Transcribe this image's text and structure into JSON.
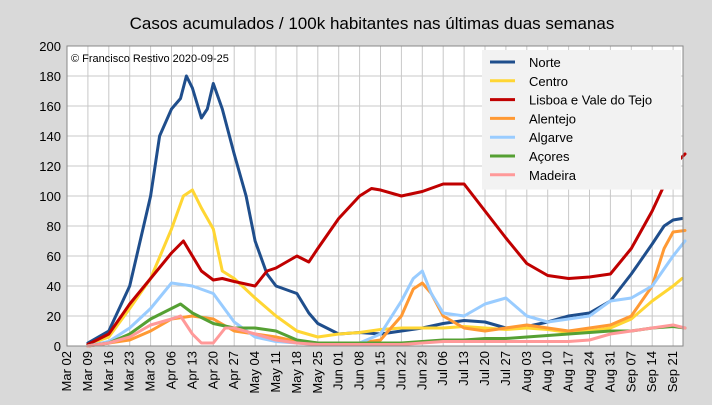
{
  "chart_data": {
    "type": "line",
    "title": "Casos acumulados / 100k habitantes nas últimas duas semanas",
    "annotation": "© Francisco Restivo 2020-09-25",
    "xlabel": "",
    "ylabel": "",
    "ylim": [
      0,
      200
    ],
    "yticks": [
      "0",
      "20",
      "40",
      "60",
      "80",
      "100",
      "120",
      "140",
      "160",
      "180",
      "200"
    ],
    "x_ticks": [
      "Mar 02",
      "Mar 09",
      "Mar 16",
      "Mar 23",
      "Mar 30",
      "Apr 06",
      "Apr 13",
      "Apr 20",
      "Apr 27",
      "May 04",
      "May 11",
      "May 18",
      "May 25",
      "Jun 01",
      "Jun 08",
      "Jun 15",
      "Jun 22",
      "Jun 29",
      "Jul 06",
      "Jul 13",
      "Jul 20",
      "Jul 27",
      "Aug 03",
      "Aug 10",
      "Aug 17",
      "Aug 24",
      "Aug 31",
      "Sep 07",
      "Sep 14",
      "Sep 21"
    ],
    "grid": true,
    "legend_position": "top-right",
    "series": [
      {
        "name": "Norte",
        "color": "#1f4e8c",
        "x": [
          "Mar 09",
          "Mar 16",
          "Mar 23",
          "Mar 30",
          "Apr 02",
          "Apr 06",
          "Apr 09",
          "Apr 11",
          "Apr 13",
          "Apr 16",
          "Apr 18",
          "Apr 20",
          "Apr 23",
          "Apr 27",
          "May 01",
          "May 04",
          "May 08",
          "May 11",
          "May 18",
          "May 22",
          "May 25",
          "Jun 01",
          "Jun 08",
          "Jun 15",
          "Jun 22",
          "Jun 29",
          "Jul 06",
          "Jul 13",
          "Jul 20",
          "Jul 27",
          "Aug 03",
          "Aug 10",
          "Aug 17",
          "Aug 24",
          "Aug 31",
          "Sep 07",
          "Sep 14",
          "Sep 18",
          "Sep 21",
          "Sep 24"
        ],
        "y": [
          2,
          10,
          40,
          100,
          140,
          158,
          165,
          180,
          172,
          152,
          158,
          175,
          158,
          128,
          100,
          70,
          48,
          40,
          35,
          22,
          15,
          8,
          9,
          8,
          10,
          12,
          15,
          17,
          16,
          12,
          13,
          16,
          20,
          22,
          30,
          48,
          68,
          80,
          84,
          85
        ]
      },
      {
        "name": "Centro",
        "color": "#ffd633",
        "x": [
          "Mar 09",
          "Mar 16",
          "Mar 23",
          "Mar 30",
          "Apr 06",
          "Apr 10",
          "Apr 13",
          "Apr 16",
          "Apr 20",
          "Apr 23",
          "Apr 27",
          "May 04",
          "May 11",
          "May 18",
          "May 25",
          "Jun 01",
          "Jun 08",
          "Jun 15",
          "Jun 22",
          "Jun 29",
          "Jul 06",
          "Jul 13",
          "Jul 20",
          "Jul 27",
          "Aug 03",
          "Aug 10",
          "Aug 17",
          "Aug 24",
          "Aug 31",
          "Sep 07",
          "Sep 14",
          "Sep 21",
          "Sep 24"
        ],
        "y": [
          1,
          6,
          25,
          45,
          78,
          100,
          104,
          92,
          78,
          50,
          45,
          32,
          20,
          10,
          6,
          8,
          9,
          11,
          12,
          12,
          12,
          13,
          12,
          11,
          12,
          11,
          9,
          10,
          12,
          18,
          30,
          40,
          45
        ]
      },
      {
        "name": "Lisboa e Vale do Tejo",
        "color": "#c00000",
        "x": [
          "Mar 09",
          "Mar 16",
          "Mar 23",
          "Mar 30",
          "Apr 06",
          "Apr 10",
          "Apr 13",
          "Apr 16",
          "Apr 20",
          "Apr 23",
          "Apr 27",
          "May 04",
          "May 08",
          "May 11",
          "May 18",
          "May 22",
          "May 25",
          "Jun 01",
          "Jun 08",
          "Jun 12",
          "Jun 15",
          "Jun 22",
          "Jun 29",
          "Jul 06",
          "Jul 13",
          "Jul 20",
          "Jul 27",
          "Aug 03",
          "Aug 10",
          "Aug 17",
          "Aug 24",
          "Aug 31",
          "Sep 07",
          "Sep 14",
          "Sep 21",
          "Sep 25"
        ],
        "y": [
          1,
          8,
          28,
          45,
          62,
          70,
          60,
          50,
          44,
          45,
          43,
          40,
          50,
          52,
          60,
          56,
          65,
          85,
          100,
          105,
          104,
          100,
          103,
          108,
          108,
          90,
          72,
          55,
          47,
          45,
          46,
          48,
          65,
          90,
          120,
          128
        ]
      },
      {
        "name": "Alentejo",
        "color": "#ff9933",
        "x": [
          "Mar 09",
          "Mar 16",
          "Mar 23",
          "Mar 30",
          "Apr 06",
          "Apr 13",
          "Apr 20",
          "Apr 27",
          "May 04",
          "May 11",
          "May 18",
          "May 25",
          "Jun 01",
          "Jun 08",
          "Jun 15",
          "Jun 22",
          "Jun 26",
          "Jun 29",
          "Jul 02",
          "Jul 06",
          "Jul 13",
          "Jul 20",
          "Jul 27",
          "Aug 03",
          "Aug 10",
          "Aug 17",
          "Aug 24",
          "Aug 31",
          "Sep 07",
          "Sep 14",
          "Sep 18",
          "Sep 21",
          "Sep 25"
        ],
        "y": [
          0,
          2,
          4,
          10,
          18,
          20,
          18,
          10,
          8,
          6,
          3,
          2,
          2,
          2,
          4,
          20,
          38,
          42,
          35,
          20,
          12,
          10,
          12,
          14,
          12,
          10,
          12,
          14,
          20,
          40,
          65,
          76,
          77
        ]
      },
      {
        "name": "Algarve",
        "color": "#99ccff",
        "x": [
          "Mar 09",
          "Mar 16",
          "Mar 23",
          "Mar 30",
          "Apr 06",
          "Apr 13",
          "Apr 20",
          "Apr 27",
          "May 04",
          "May 11",
          "May 18",
          "May 25",
          "Jun 01",
          "Jun 08",
          "Jun 15",
          "Jun 22",
          "Jun 26",
          "Jun 29",
          "Jul 02",
          "Jul 06",
          "Jul 13",
          "Jul 20",
          "Jul 27",
          "Aug 03",
          "Aug 10",
          "Aug 17",
          "Aug 24",
          "Aug 31",
          "Sep 07",
          "Sep 14",
          "Sep 21",
          "Sep 25"
        ],
        "y": [
          0,
          3,
          12,
          25,
          42,
          40,
          35,
          16,
          6,
          3,
          2,
          1,
          1,
          2,
          8,
          30,
          45,
          50,
          35,
          22,
          20,
          28,
          32,
          20,
          16,
          18,
          20,
          30,
          32,
          40,
          60,
          70
        ]
      },
      {
        "name": "Açores",
        "color": "#55a033",
        "x": [
          "Mar 09",
          "Mar 16",
          "Mar 23",
          "Mar 30",
          "Apr 06",
          "Apr 09",
          "Apr 13",
          "Apr 20",
          "Apr 27",
          "May 04",
          "May 11",
          "May 18",
          "May 25",
          "Jun 01",
          "Jun 08",
          "Jun 15",
          "Jun 22",
          "Jun 29",
          "Jul 06",
          "Jul 13",
          "Jul 20",
          "Jul 27",
          "Aug 03",
          "Aug 10",
          "Aug 17",
          "Aug 24",
          "Aug 31",
          "Sep 07",
          "Sep 14",
          "Sep 21",
          "Sep 25"
        ],
        "y": [
          0,
          2,
          8,
          18,
          25,
          28,
          22,
          15,
          12,
          12,
          10,
          4,
          2,
          2,
          2,
          2,
          2,
          3,
          4,
          4,
          5,
          5,
          6,
          7,
          8,
          9,
          10,
          10,
          12,
          13,
          12
        ]
      },
      {
        "name": "Madeira",
        "color": "#ff9999",
        "x": [
          "Mar 09",
          "Mar 16",
          "Mar 23",
          "Mar 30",
          "Apr 06",
          "Apr 09",
          "Apr 13",
          "Apr 16",
          "Apr 20",
          "Apr 24",
          "Apr 27",
          "May 04",
          "May 11",
          "May 18",
          "May 25",
          "Jun 01",
          "Jun 08",
          "Jun 15",
          "Jun 22",
          "Jun 29",
          "Jul 06",
          "Jul 13",
          "Jul 20",
          "Jul 27",
          "Aug 03",
          "Aug 10",
          "Aug 17",
          "Aug 24",
          "Aug 31",
          "Sep 07",
          "Sep 14",
          "Sep 21",
          "Sep 25"
        ],
        "y": [
          0,
          2,
          6,
          14,
          18,
          20,
          8,
          2,
          2,
          12,
          12,
          8,
          4,
          2,
          1,
          1,
          1,
          1,
          1,
          2,
          3,
          3,
          3,
          3,
          3,
          3,
          3,
          4,
          8,
          10,
          12,
          14,
          12
        ]
      }
    ]
  }
}
